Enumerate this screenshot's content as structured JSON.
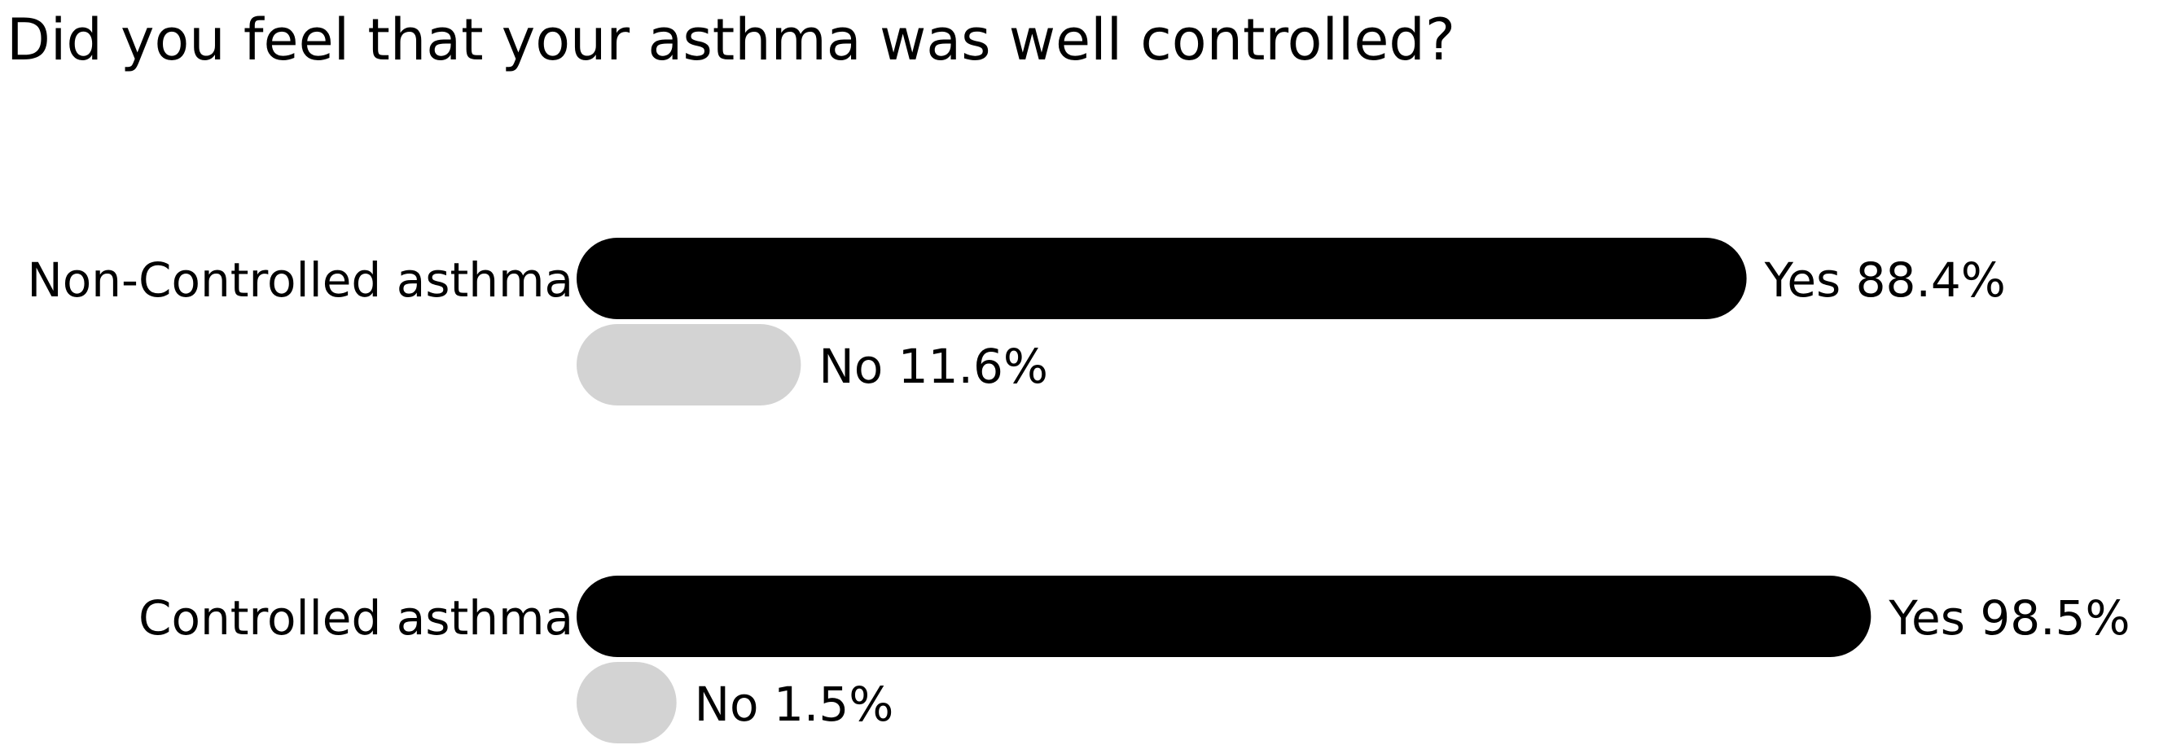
{
  "chart_data": {
    "type": "bar",
    "orientation": "horizontal",
    "title": "Did you feel that your asthma was well controlled?",
    "categories": [
      "Non-Controlled asthma",
      "Controlled asthma"
    ],
    "series": [
      {
        "name": "Yes",
        "color": "#000000",
        "values": [
          88.4,
          98.5
        ]
      },
      {
        "name": "No",
        "color": "#d3d3d3",
        "values": [
          11.6,
          1.5
        ]
      }
    ],
    "unit": "%",
    "xlim": [
      0,
      100
    ],
    "grid": false,
    "legend": "none"
  }
}
